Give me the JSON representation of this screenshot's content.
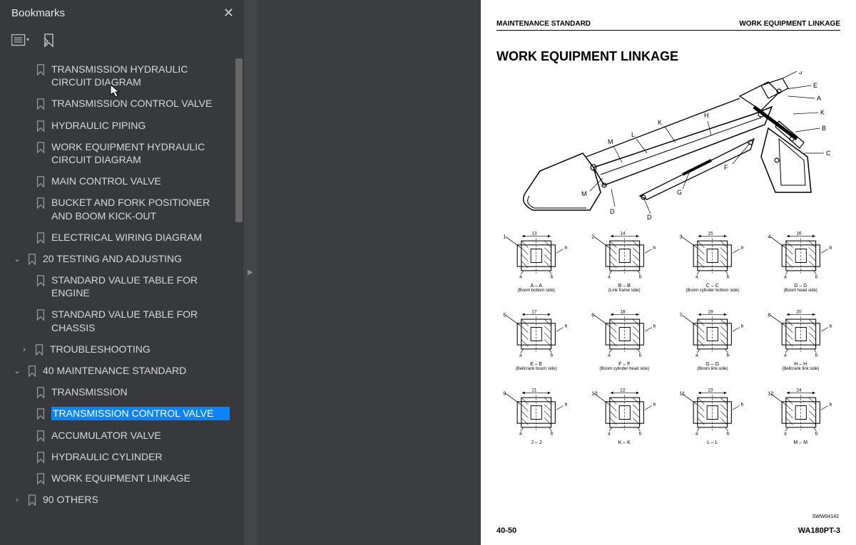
{
  "sidebar": {
    "title": "Bookmarks",
    "items": [
      {
        "level": "ind1",
        "text": "TRANSMISSION HYDRAULIC CIRCUIT DIAGRAM",
        "sel": false
      },
      {
        "level": "ind1",
        "text": "TRANSMISSION CONTROL VALVE",
        "sel": false
      },
      {
        "level": "ind1",
        "text": "HYDRAULIC PIPING",
        "sel": false
      },
      {
        "level": "ind1",
        "text": "WORK EQUIPMENT HYDRAULIC CIRCUIT DIAGRAM",
        "sel": false
      },
      {
        "level": "ind1",
        "text": "MAIN CONTROL VALVE",
        "sel": false
      },
      {
        "level": "ind1",
        "text": "BUCKET AND FORK POSITIONER AND BOOM KICK-OUT",
        "sel": false
      },
      {
        "level": "ind1",
        "text": "ELECTRICAL WIRING DIAGRAM",
        "sel": false
      },
      {
        "level": "ind0",
        "text": "20 TESTING AND ADJUSTING",
        "sel": false,
        "chev": "down"
      },
      {
        "level": "ind1",
        "text": "STANDARD VALUE TABLE FOR ENGINE",
        "sel": false
      },
      {
        "level": "ind1",
        "text": "STANDARD VALUE TABLE FOR CHASSIS",
        "sel": false
      },
      {
        "level": "ind1c",
        "text": "TROUBLESHOOTING",
        "sel": false,
        "chev": "right"
      },
      {
        "level": "ind0",
        "text": "40 MAINTENANCE STANDARD",
        "sel": false,
        "chev": "down"
      },
      {
        "level": "ind1",
        "text": "TRANSMISSION",
        "sel": false
      },
      {
        "level": "ind1",
        "text": "TRANSMISSION CONTROL VALVE",
        "sel": true
      },
      {
        "level": "ind1",
        "text": "ACCUMULATOR VALVE",
        "sel": false
      },
      {
        "level": "ind1",
        "text": "HYDRAULIC CYLINDER",
        "sel": false
      },
      {
        "level": "ind1",
        "text": "WORK EQUIPMENT LINKAGE",
        "sel": false
      },
      {
        "level": "ind0",
        "text": "90 OTHERS",
        "sel": false,
        "chev": "right"
      }
    ]
  },
  "page": {
    "header_left": "MAINTENANCE STANDARD",
    "header_right": "WORK EQUIPMENT LINKAGE",
    "title": "WORK EQUIPMENT LINKAGE",
    "footer_left": "40-50",
    "footer_right": "WA180PT-3",
    "small_code": "SWW04142",
    "main_labels": [
      "A",
      "B",
      "C",
      "D",
      "E",
      "F",
      "G",
      "H",
      "J",
      "K",
      "L",
      "M"
    ],
    "sections": [
      {
        "n": "1",
        "dim": "13",
        "lbl": "A – A",
        "sub": "(Boom bottom side)"
      },
      {
        "n": "2",
        "dim": "14",
        "lbl": "B – B",
        "sub": "(Link frame side)"
      },
      {
        "n": "3",
        "dim": "15",
        "lbl": "C – C",
        "sub": "(Boom cylinder bottom side)"
      },
      {
        "n": "4",
        "dim": "16",
        "lbl": "D – D",
        "sub": "(Boom head side)"
      },
      {
        "n": "5",
        "dim": "17",
        "lbl": "E – E",
        "sub": "(Bellcrank boom side)"
      },
      {
        "n": "6",
        "dim": "18",
        "lbl": "F – F",
        "sub": "(Boom cylinder head side)"
      },
      {
        "n": "7",
        "dim": "19",
        "lbl": "G – G",
        "sub": "(Boom link side)"
      },
      {
        "n": "8",
        "dim": "20",
        "lbl": "H – H",
        "sub": "(Bellcrank link side)"
      },
      {
        "n": "9",
        "dim": "21",
        "lbl": "J – J",
        "sub": ""
      },
      {
        "n": "10",
        "dim": "22",
        "lbl": "K – K",
        "sub": ""
      },
      {
        "n": "11",
        "dim": "23",
        "lbl": "L – L",
        "sub": ""
      },
      {
        "n": "12",
        "dim": "24",
        "lbl": "M – M",
        "sub": ""
      }
    ]
  },
  "colors": {
    "sidebar_bg": "#38393c",
    "select": "#0a84ff",
    "page_bg": "#ffffff",
    "viewer_bg": "#3c3d40"
  }
}
